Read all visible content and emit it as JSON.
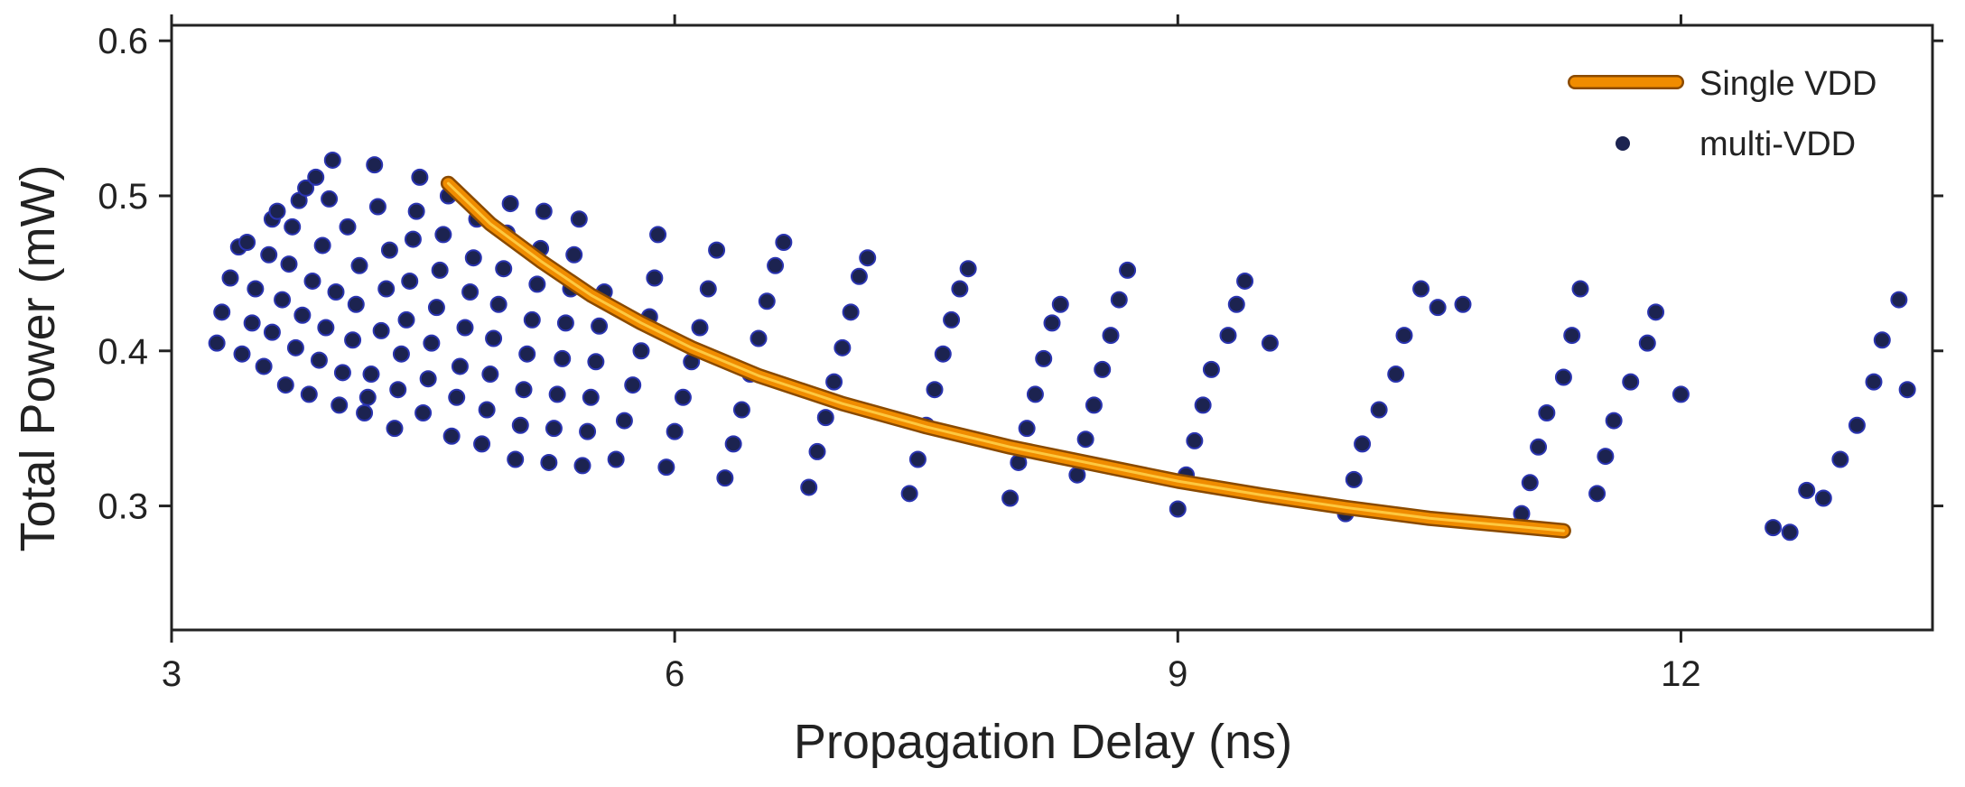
{
  "chart_data": {
    "type": "scatter",
    "title": "",
    "xlabel": "Propagation Delay (ns)",
    "ylabel": "Total Power (mW)",
    "xlim": [
      3,
      13.5
    ],
    "ylim": [
      0.22,
      0.61
    ],
    "xticks": [
      3,
      6,
      9,
      12
    ],
    "yticks": [
      0.3,
      0.4,
      0.5,
      0.6
    ],
    "xtick_labels": [
      "3",
      "6",
      "9",
      "12"
    ],
    "ytick_labels": [
      "0.3",
      "0.4",
      "0.5",
      "0.6"
    ],
    "grid": false,
    "legend_position": "top-right",
    "colors": {
      "line": "#f08c00",
      "line_highlight": "#ffd24a",
      "line_edge": "#8a4a00",
      "point": "#1c2350",
      "point_edge": "#2a34b0",
      "axis": "#222222"
    },
    "series": [
      {
        "name": "Single VDD",
        "kind": "line",
        "x": [
          4.65,
          4.9,
          5.2,
          5.5,
          5.8,
          6.1,
          6.5,
          7.0,
          7.5,
          8.0,
          8.5,
          9.0,
          9.5,
          10.0,
          10.5,
          11.0,
          11.3
        ],
        "y": [
          0.508,
          0.482,
          0.458,
          0.436,
          0.418,
          0.402,
          0.384,
          0.366,
          0.351,
          0.338,
          0.327,
          0.316,
          0.307,
          0.299,
          0.292,
          0.287,
          0.284
        ]
      },
      {
        "name": "multi-VDD",
        "kind": "scatter",
        "points": [
          [
            3.27,
            0.405
          ],
          [
            3.3,
            0.425
          ],
          [
            3.35,
            0.447
          ],
          [
            3.4,
            0.467
          ],
          [
            3.42,
            0.398
          ],
          [
            3.45,
            0.47
          ],
          [
            3.48,
            0.418
          ],
          [
            3.5,
            0.44
          ],
          [
            3.55,
            0.39
          ],
          [
            3.58,
            0.462
          ],
          [
            3.6,
            0.485
          ],
          [
            3.6,
            0.412
          ],
          [
            3.63,
            0.49
          ],
          [
            3.66,
            0.433
          ],
          [
            3.68,
            0.378
          ],
          [
            3.7,
            0.456
          ],
          [
            3.72,
            0.48
          ],
          [
            3.74,
            0.402
          ],
          [
            3.76,
            0.497
          ],
          [
            3.78,
            0.423
          ],
          [
            3.8,
            0.505
          ],
          [
            3.82,
            0.372
          ],
          [
            3.84,
            0.445
          ],
          [
            3.86,
            0.512
          ],
          [
            3.88,
            0.394
          ],
          [
            3.9,
            0.468
          ],
          [
            3.92,
            0.415
          ],
          [
            3.94,
            0.498
          ],
          [
            3.96,
            0.523
          ],
          [
            3.98,
            0.438
          ],
          [
            4.0,
            0.365
          ],
          [
            4.02,
            0.386
          ],
          [
            4.05,
            0.48
          ],
          [
            4.08,
            0.407
          ],
          [
            4.1,
            0.43
          ],
          [
            4.12,
            0.455
          ],
          [
            4.15,
            0.36
          ],
          [
            4.17,
            0.37
          ],
          [
            4.19,
            0.385
          ],
          [
            4.21,
            0.52
          ],
          [
            4.23,
            0.493
          ],
          [
            4.25,
            0.413
          ],
          [
            4.28,
            0.44
          ],
          [
            4.3,
            0.465
          ],
          [
            4.33,
            0.35
          ],
          [
            4.35,
            0.375
          ],
          [
            4.37,
            0.398
          ],
          [
            4.4,
            0.42
          ],
          [
            4.42,
            0.445
          ],
          [
            4.44,
            0.472
          ],
          [
            4.46,
            0.49
          ],
          [
            4.48,
            0.512
          ],
          [
            4.5,
            0.36
          ],
          [
            4.53,
            0.382
          ],
          [
            4.55,
            0.405
          ],
          [
            4.58,
            0.428
          ],
          [
            4.6,
            0.452
          ],
          [
            4.62,
            0.475
          ],
          [
            4.65,
            0.5
          ],
          [
            4.67,
            0.345
          ],
          [
            4.7,
            0.37
          ],
          [
            4.72,
            0.39
          ],
          [
            4.75,
            0.415
          ],
          [
            4.78,
            0.438
          ],
          [
            4.8,
            0.46
          ],
          [
            4.82,
            0.485
          ],
          [
            4.85,
            0.34
          ],
          [
            4.88,
            0.362
          ],
          [
            4.9,
            0.385
          ],
          [
            4.92,
            0.408
          ],
          [
            4.95,
            0.43
          ],
          [
            4.98,
            0.453
          ],
          [
            5.0,
            0.476
          ],
          [
            5.02,
            0.495
          ],
          [
            5.05,
            0.33
          ],
          [
            5.08,
            0.352
          ],
          [
            5.1,
            0.375
          ],
          [
            5.12,
            0.398
          ],
          [
            5.15,
            0.42
          ],
          [
            5.18,
            0.443
          ],
          [
            5.2,
            0.466
          ],
          [
            5.22,
            0.49
          ],
          [
            5.25,
            0.328
          ],
          [
            5.28,
            0.35
          ],
          [
            5.3,
            0.372
          ],
          [
            5.33,
            0.395
          ],
          [
            5.35,
            0.418
          ],
          [
            5.38,
            0.44
          ],
          [
            5.4,
            0.462
          ],
          [
            5.43,
            0.485
          ],
          [
            5.45,
            0.326
          ],
          [
            5.48,
            0.348
          ],
          [
            5.5,
            0.37
          ],
          [
            5.53,
            0.393
          ],
          [
            5.55,
            0.416
          ],
          [
            5.58,
            0.438
          ],
          [
            5.65,
            0.33
          ],
          [
            5.7,
            0.355
          ],
          [
            5.75,
            0.378
          ],
          [
            5.8,
            0.4
          ],
          [
            5.85,
            0.422
          ],
          [
            5.88,
            0.447
          ],
          [
            5.9,
            0.475
          ],
          [
            5.95,
            0.325
          ],
          [
            6.0,
            0.348
          ],
          [
            6.05,
            0.37
          ],
          [
            6.1,
            0.393
          ],
          [
            6.15,
            0.415
          ],
          [
            6.2,
            0.44
          ],
          [
            6.25,
            0.465
          ],
          [
            6.3,
            0.318
          ],
          [
            6.35,
            0.34
          ],
          [
            6.4,
            0.362
          ],
          [
            6.45,
            0.385
          ],
          [
            6.5,
            0.408
          ],
          [
            6.55,
            0.432
          ],
          [
            6.6,
            0.455
          ],
          [
            6.65,
            0.47
          ],
          [
            6.8,
            0.312
          ],
          [
            6.85,
            0.335
          ],
          [
            6.9,
            0.357
          ],
          [
            6.95,
            0.38
          ],
          [
            7.0,
            0.402
          ],
          [
            7.05,
            0.425
          ],
          [
            7.1,
            0.448
          ],
          [
            7.15,
            0.46
          ],
          [
            7.4,
            0.308
          ],
          [
            7.45,
            0.33
          ],
          [
            7.5,
            0.352
          ],
          [
            7.55,
            0.375
          ],
          [
            7.6,
            0.398
          ],
          [
            7.65,
            0.42
          ],
          [
            7.7,
            0.44
          ],
          [
            7.75,
            0.453
          ],
          [
            8.0,
            0.305
          ],
          [
            8.05,
            0.328
          ],
          [
            8.1,
            0.35
          ],
          [
            8.15,
            0.372
          ],
          [
            8.2,
            0.395
          ],
          [
            8.25,
            0.418
          ],
          [
            8.3,
            0.43
          ],
          [
            8.4,
            0.32
          ],
          [
            8.45,
            0.343
          ],
          [
            8.5,
            0.365
          ],
          [
            8.55,
            0.388
          ],
          [
            8.6,
            0.41
          ],
          [
            8.65,
            0.433
          ],
          [
            8.7,
            0.452
          ],
          [
            9.0,
            0.298
          ],
          [
            9.05,
            0.32
          ],
          [
            9.1,
            0.342
          ],
          [
            9.15,
            0.365
          ],
          [
            9.2,
            0.388
          ],
          [
            9.3,
            0.41
          ],
          [
            9.35,
            0.43
          ],
          [
            9.4,
            0.445
          ],
          [
            9.55,
            0.405
          ],
          [
            10.0,
            0.295
          ],
          [
            10.05,
            0.317
          ],
          [
            10.1,
            0.34
          ],
          [
            10.2,
            0.362
          ],
          [
            10.3,
            0.385
          ],
          [
            10.35,
            0.41
          ],
          [
            10.45,
            0.44
          ],
          [
            10.55,
            0.428
          ],
          [
            10.7,
            0.43
          ],
          [
            11.05,
            0.295
          ],
          [
            11.1,
            0.315
          ],
          [
            11.15,
            0.338
          ],
          [
            11.2,
            0.36
          ],
          [
            11.3,
            0.383
          ],
          [
            11.35,
            0.41
          ],
          [
            11.4,
            0.44
          ],
          [
            11.5,
            0.308
          ],
          [
            11.55,
            0.332
          ],
          [
            11.6,
            0.355
          ],
          [
            11.7,
            0.38
          ],
          [
            11.8,
            0.405
          ],
          [
            11.85,
            0.425
          ],
          [
            12.0,
            0.372
          ],
          [
            12.55,
            0.286
          ],
          [
            12.65,
            0.283
          ],
          [
            12.75,
            0.31
          ],
          [
            12.85,
            0.305
          ],
          [
            12.95,
            0.33
          ],
          [
            13.05,
            0.352
          ],
          [
            13.15,
            0.38
          ],
          [
            13.2,
            0.407
          ],
          [
            13.3,
            0.433
          ],
          [
            13.35,
            0.375
          ]
        ]
      }
    ]
  }
}
